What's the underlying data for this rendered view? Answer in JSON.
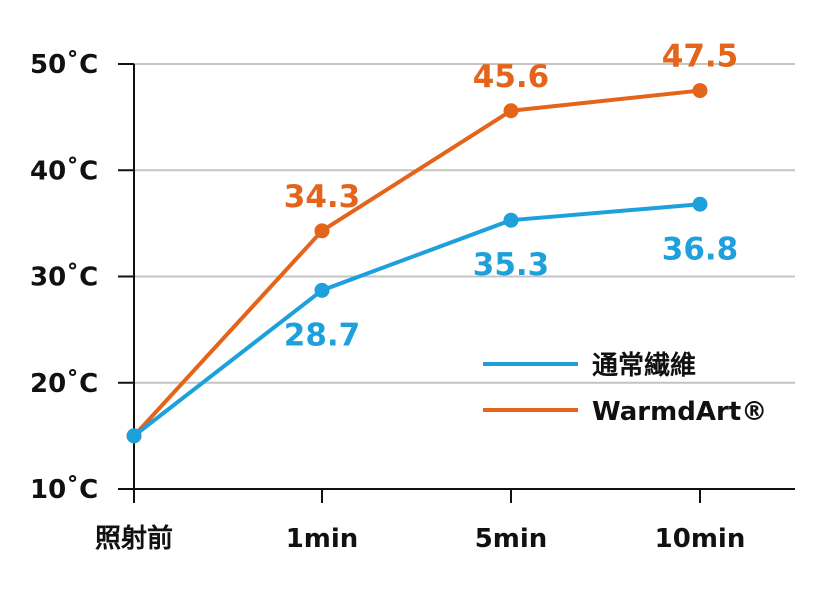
{
  "chart_data": {
    "type": "line",
    "categories": [
      "照射前",
      "1min",
      "5min",
      "10min"
    ],
    "ylim": [
      10,
      50
    ],
    "yticks": [
      10,
      20,
      30,
      40,
      50
    ],
    "ytick_labels": [
      "10˚C",
      "20˚C",
      "30˚C",
      "40˚C",
      "50˚C"
    ],
    "grid": true,
    "legend_position": "bottom-right",
    "series": [
      {
        "name": "通常繊維",
        "color": "#1ea0dc",
        "values": [
          15,
          28.7,
          35.3,
          36.8
        ],
        "labels": [
          "",
          "28.7",
          "35.3",
          "36.8"
        ],
        "label_position": [
          "none",
          "below",
          "below",
          "below"
        ]
      },
      {
        "name": "WarmdArt®",
        "color": "#e4641a",
        "values": [
          15,
          34.3,
          45.6,
          47.5
        ],
        "labels": [
          "",
          "34.3",
          "45.6",
          "47.5"
        ],
        "label_position": [
          "none",
          "above",
          "above",
          "above"
        ]
      }
    ]
  }
}
